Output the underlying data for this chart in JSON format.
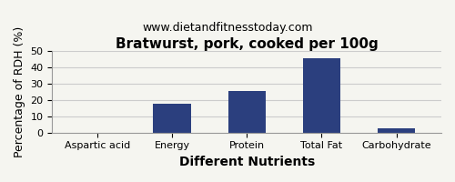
{
  "title": "Bratwurst, pork, cooked per 100g",
  "subtitle": "www.dietandfitnesstoday.com",
  "xlabel": "Different Nutrients",
  "ylabel": "Percentage of RDH (%)",
  "categories": [
    "Aspartic acid",
    "Energy",
    "Protein",
    "Total Fat",
    "Carbohydrate"
  ],
  "values": [
    0,
    17.5,
    25.5,
    45.5,
    2.5
  ],
  "bar_color": "#2b3f7e",
  "ylim": [
    0,
    50
  ],
  "yticks": [
    0,
    10,
    20,
    30,
    40,
    50
  ],
  "background_color": "#f5f5f0",
  "border_color": "#999999",
  "title_fontsize": 11,
  "subtitle_fontsize": 9,
  "xlabel_fontsize": 10,
  "ylabel_fontsize": 9,
  "tick_fontsize": 8
}
